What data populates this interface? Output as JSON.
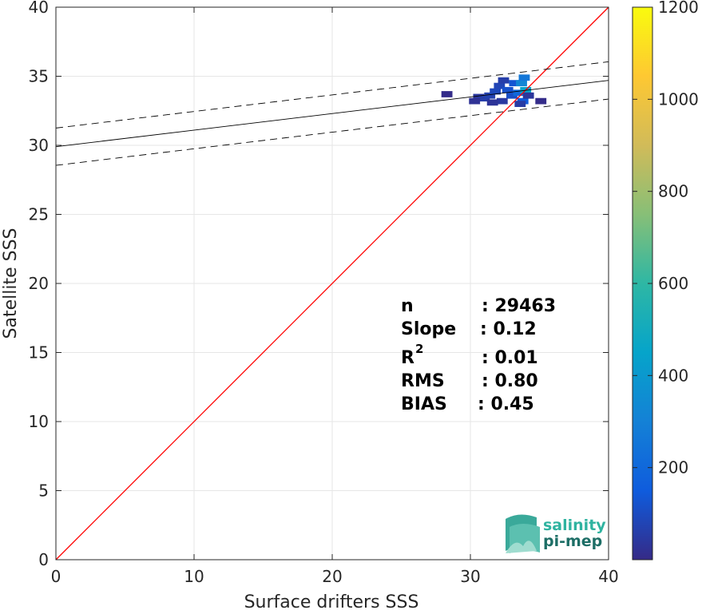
{
  "chart_data": {
    "type": "heatmap",
    "xlabel": "Surface drifters SSS",
    "ylabel": "Satellite SSS",
    "xlim": [
      0,
      40
    ],
    "ylim": [
      0,
      40
    ],
    "xticks": [
      "0",
      "10",
      "20",
      "30",
      "40"
    ],
    "yticks": [
      "0",
      "5",
      "10",
      "15",
      "20",
      "25",
      "30",
      "35",
      "40"
    ],
    "grid": true,
    "identity_line": {
      "color": "#ff0000",
      "from": [
        0,
        0
      ],
      "to": [
        40,
        40
      ]
    },
    "regression_line": {
      "intercept": 29.9,
      "slope": 0.12,
      "color": "#000000"
    },
    "confidence_band": {
      "offset": 1.35,
      "style": "dashed"
    },
    "density_cells": [
      {
        "x": 30.6,
        "y": 33.5,
        "count": 40
      },
      {
        "x": 31.0,
        "y": 33.4,
        "count": 60
      },
      {
        "x": 31.4,
        "y": 33.6,
        "count": 70
      },
      {
        "x": 31.8,
        "y": 33.9,
        "count": 90
      },
      {
        "x": 32.1,
        "y": 34.3,
        "count": 80
      },
      {
        "x": 32.4,
        "y": 34.7,
        "count": 60
      },
      {
        "x": 32.7,
        "y": 34.0,
        "count": 120
      },
      {
        "x": 33.0,
        "y": 33.6,
        "count": 110
      },
      {
        "x": 33.2,
        "y": 34.5,
        "count": 130
      },
      {
        "x": 33.5,
        "y": 33.8,
        "count": 200
      },
      {
        "x": 33.7,
        "y": 34.5,
        "count": 320
      },
      {
        "x": 33.8,
        "y": 33.2,
        "count": 150
      },
      {
        "x": 33.9,
        "y": 34.9,
        "count": 260
      },
      {
        "x": 34.0,
        "y": 34.0,
        "count": 450
      },
      {
        "x": 33.6,
        "y": 33.0,
        "count": 50
      },
      {
        "x": 32.3,
        "y": 33.2,
        "count": 45
      },
      {
        "x": 30.3,
        "y": 33.2,
        "count": 25
      },
      {
        "x": 31.6,
        "y": 33.1,
        "count": 30
      },
      {
        "x": 34.2,
        "y": 33.6,
        "count": 35
      },
      {
        "x": 28.3,
        "y": 33.7,
        "count": 5
      },
      {
        "x": 35.1,
        "y": 33.2,
        "count": 5
      }
    ],
    "colorbar": {
      "min": 0,
      "max": 1200,
      "ticks": [
        "200",
        "400",
        "600",
        "800",
        "1000",
        "1200"
      ],
      "colormap": "parula"
    },
    "stats": [
      {
        "label": "n",
        "value": ": 29463"
      },
      {
        "label": "Slope",
        "value": ": 0.12"
      },
      {
        "label": "R",
        "sup": "2",
        "value": ": 0.01"
      },
      {
        "label": "RMS",
        "value": ": 0.80"
      },
      {
        "label": "BIAS",
        "value": ": 0.45"
      }
    ]
  },
  "logo": {
    "line1": "salinity",
    "line2": "pi-mep"
  }
}
